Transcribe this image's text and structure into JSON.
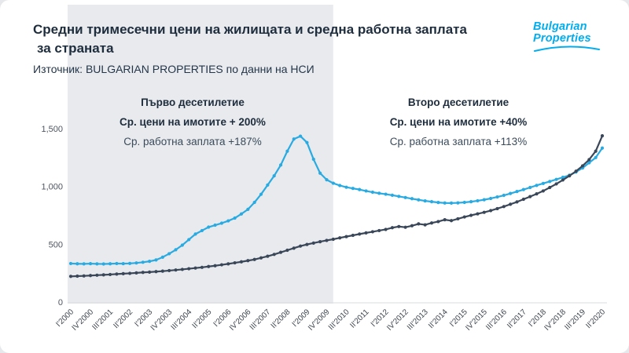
{
  "header": {
    "title_line1": "Средни тримесечни цени на жилищата и средна работна заплата",
    "title_line2": "за страната",
    "source": "Източник: BULGARIAN PROPERTIES по данни на НСИ"
  },
  "logo": {
    "line1": "Bulgarian",
    "line2": "Properties",
    "color": "#00aeef"
  },
  "annotations": {
    "first_decade": {
      "title": "Първо десетилетие",
      "line1": "Ср. цени на имотите + 200%",
      "line2": "Ср. работна заплата +187%"
    },
    "second_decade": {
      "title": "Второ десетилетие",
      "line1": "Ср. цени на имотите +40%",
      "line2": "Ср. работна заплата +113%"
    }
  },
  "colors": {
    "title_navy": "#1e2d3d",
    "property_line": "#29abe2",
    "salary_line": "#3a4759",
    "first_decade_shade": "#e8eaed"
  },
  "chart_data": {
    "type": "line",
    "title": "Средни тримесечни цени на жилищата и средна работна заплата за страната",
    "ylim": [
      0,
      1500
    ],
    "yticks": [
      0,
      500,
      1000,
      1500
    ],
    "ytick_labels": [
      "0",
      "500",
      "1,000",
      "1,500"
    ],
    "label_step": 3,
    "x_labels": [
      "I'2000",
      "IV'2000",
      "III'2001",
      "II'2002",
      "I'2003",
      "IV'2003",
      "III'2004",
      "II'2005",
      "I'2006",
      "IV'2006",
      "III'2007",
      "II'2008",
      "I'2009",
      "IV'2009",
      "III'2010",
      "II'2011",
      "I'2012",
      "IV'2012",
      "III'2013",
      "II'2014",
      "I'2015",
      "IV'2015",
      "III'2016",
      "II'2017",
      "I'2018",
      "IV'2018",
      "III'2019",
      "II'2020"
    ],
    "first_decade_shade": {
      "end_index": 40,
      "color": "#e8eaed"
    },
    "series": [
      {
        "name": "property-prices",
        "color": "#29abe2",
        "values": [
          333,
          331,
          330,
          332,
          330,
          329,
          331,
          333,
          332,
          334,
          338,
          344,
          352,
          364,
          388,
          418,
          452,
          492,
          540,
          588,
          618,
          648,
          665,
          682,
          702,
          726,
          762,
          802,
          862,
          932,
          1012,
          1092,
          1185,
          1305,
          1410,
          1435,
          1380,
          1235,
          1115,
          1058,
          1028,
          1008,
          993,
          983,
          973,
          961,
          950,
          941,
          933,
          924,
          914,
          904,
          894,
          884,
          875,
          868,
          861,
          857,
          856,
          858,
          862,
          868,
          876,
          885,
          896,
          909,
          923,
          939,
          956,
          973,
          991,
          1009,
          1026,
          1043,
          1061,
          1079,
          1097,
          1125,
          1160,
          1205,
          1250,
          1332
        ]
      },
      {
        "name": "average-salary",
        "color": "#3a4759",
        "values": [
          222,
          224,
          226,
          229,
          232,
          235,
          238,
          242,
          245,
          248,
          252,
          256,
          259,
          263,
          267,
          272,
          277,
          282,
          288,
          294,
          300,
          307,
          314,
          322,
          330,
          339,
          348,
          358,
          368,
          382,
          396,
          412,
          430,
          448,
          466,
          484,
          498,
          510,
          522,
          533,
          543,
          555,
          566,
          577,
          588,
          598,
          608,
          618,
          628,
          643,
          653,
          647,
          660,
          676,
          668,
          684,
          696,
          712,
          704,
          720,
          736,
          750,
          763,
          776,
          791,
          808,
          826,
          846,
          866,
          889,
          912,
          936,
          961,
          991,
          1022,
          1056,
          1092,
          1132,
          1178,
          1232,
          1305,
          1438
        ]
      }
    ]
  }
}
